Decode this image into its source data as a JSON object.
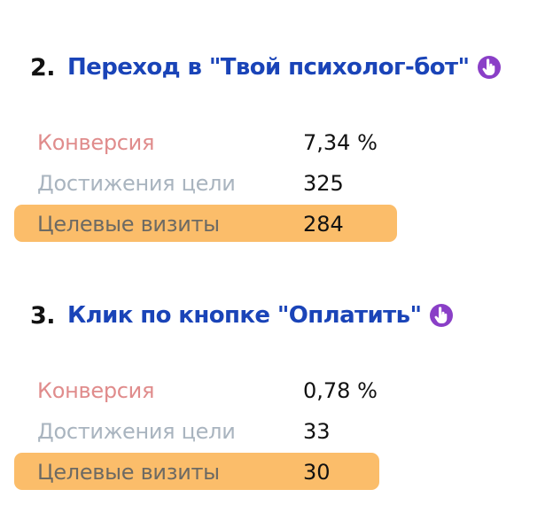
{
  "goals": [
    {
      "number": "2.",
      "title": "Переход в \"Твой психолог-бот\"",
      "icon": "pointer-hand-icon",
      "metrics": {
        "conversion_label": "Конверсия",
        "conversion_value": "7,34 %",
        "reaches_label": "Достижения цели",
        "reaches_value": "325",
        "visits_label": "Целевые визиты",
        "visits_value": "284"
      }
    },
    {
      "number": "3.",
      "title": "Клик по кнопке \"Оплатить\"",
      "icon": "pointer-hand-icon",
      "metrics": {
        "conversion_label": "Конверсия",
        "conversion_value": "0,78 %",
        "reaches_label": "Достижения цели",
        "reaches_value": "33",
        "visits_label": "Целевые визиты",
        "visits_value": "30"
      }
    }
  ],
  "colors": {
    "title": "#1a44b8",
    "icon": "#8a3fc7",
    "conversion_label": "#e08c8c",
    "reaches_label": "#a9b4bf",
    "highlight": "#fbbd6a"
  }
}
